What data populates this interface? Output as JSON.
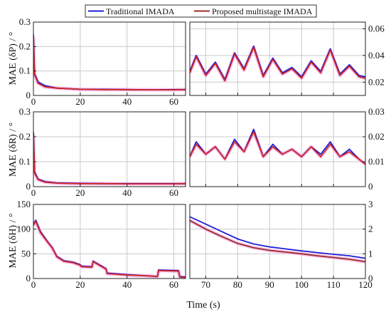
{
  "legend": {
    "entries": [
      {
        "name": "Traditional IMADA",
        "color": "#1f1fd6"
      },
      {
        "name": "Proposed multistage IMADA",
        "color": "#9b2d22"
      }
    ]
  },
  "colors": {
    "overlay": "#ff1f1f",
    "halo": "#f5a6e8"
  },
  "chart_data": [
    {
      "type": "line",
      "ylabel": "MAE (δP) / °",
      "xlabel": "Time (s)",
      "left": {
        "xlim": [
          0,
          65
        ],
        "ylim": [
          0,
          0.3
        ],
        "xticks": [
          "0",
          "20",
          "40",
          "60"
        ],
        "yticks": [
          "0",
          "0.1",
          "0.2",
          "0.3"
        ],
        "series": [
          {
            "name": "Traditional IMADA",
            "x": [
              0,
              0.5,
              2,
              5,
              10,
              20,
              30,
              40,
              50,
              60,
              65
            ],
            "y": [
              0.25,
              0.09,
              0.055,
              0.04,
              0.03,
              0.025,
              0.025,
              0.024,
              0.023,
              0.024,
              0.024
            ]
          },
          {
            "name": "Proposed multistage IMADA",
            "x": [
              0,
              0.5,
              2,
              5,
              10,
              20,
              30,
              40,
              50,
              60,
              65
            ],
            "y": [
              0.24,
              0.085,
              0.05,
              0.035,
              0.03,
              0.025,
              0.024,
              0.024,
              0.023,
              0.023,
              0.024
            ]
          }
        ]
      },
      "right": {
        "xlim": [
          65,
          120
        ],
        "ylim": [
          0.01,
          0.065
        ],
        "xticks": [
          "70",
          "80",
          "90",
          "100",
          "110",
          "120"
        ],
        "yticks": [
          "0.02",
          "0.04",
          "0.06"
        ],
        "series": [
          {
            "name": "Traditional IMADA",
            "x": [
              65,
              67,
              70,
              73,
              76,
              79,
              82,
              85,
              88,
              91,
              94,
              97,
              100,
              103,
              106,
              109,
              112,
              115,
              118,
              120
            ],
            "y": [
              0.028,
              0.04,
              0.026,
              0.035,
              0.022,
              0.042,
              0.03,
              0.047,
              0.025,
              0.038,
              0.027,
              0.031,
              0.024,
              0.036,
              0.028,
              0.045,
              0.026,
              0.033,
              0.025,
              0.024
            ]
          },
          {
            "name": "Proposed multistage IMADA",
            "x": [
              65,
              67,
              70,
              73,
              76,
              79,
              82,
              85,
              88,
              91,
              94,
              97,
              100,
              103,
              106,
              109,
              112,
              115,
              118,
              120
            ],
            "y": [
              0.027,
              0.039,
              0.025,
              0.034,
              0.021,
              0.041,
              0.029,
              0.046,
              0.024,
              0.037,
              0.026,
              0.03,
              0.023,
              0.035,
              0.027,
              0.044,
              0.025,
              0.032,
              0.024,
              0.023
            ]
          }
        ]
      }
    },
    {
      "type": "line",
      "ylabel": "MAE (δR) / °",
      "xlabel": "Time (s)",
      "left": {
        "xlim": [
          0,
          65
        ],
        "ylim": [
          0,
          0.3
        ],
        "xticks": [
          "0",
          "20",
          "40",
          "60"
        ],
        "yticks": [
          "0",
          "0.1",
          "0.2",
          "0.3"
        ],
        "series": [
          {
            "name": "Traditional IMADA",
            "x": [
              0,
              0.5,
              2,
              5,
              10,
              20,
              30,
              40,
              50,
              60,
              65
            ],
            "y": [
              0.22,
              0.06,
              0.03,
              0.02,
              0.015,
              0.013,
              0.012,
              0.012,
              0.012,
              0.012,
              0.012
            ]
          },
          {
            "name": "Proposed multistage IMADA",
            "x": [
              0,
              0.5,
              2,
              5,
              10,
              20,
              30,
              40,
              50,
              60,
              65
            ],
            "y": [
              0.21,
              0.055,
              0.028,
              0.018,
              0.014,
              0.012,
              0.012,
              0.011,
              0.011,
              0.011,
              0.012
            ]
          }
        ]
      },
      "right": {
        "xlim": [
          65,
          120
        ],
        "ylim": [
          0,
          0.03
        ],
        "xticks": [
          "70",
          "80",
          "90",
          "100",
          "110",
          "120"
        ],
        "yticks": [
          "0",
          "0.01",
          "0.02",
          "0.03"
        ],
        "series": [
          {
            "name": "Traditional IMADA",
            "x": [
              65,
              67,
              70,
              73,
              76,
              79,
              82,
              85,
              88,
              91,
              94,
              97,
              100,
              103,
              106,
              109,
              112,
              115,
              118,
              120
            ],
            "y": [
              0.012,
              0.018,
              0.013,
              0.016,
              0.011,
              0.019,
              0.014,
              0.023,
              0.012,
              0.017,
              0.013,
              0.015,
              0.012,
              0.016,
              0.013,
              0.018,
              0.012,
              0.015,
              0.011,
              0.009
            ]
          },
          {
            "name": "Proposed multistage IMADA",
            "x": [
              65,
              67,
              70,
              73,
              76,
              79,
              82,
              85,
              88,
              91,
              94,
              97,
              100,
              103,
              106,
              109,
              112,
              115,
              118,
              120
            ],
            "y": [
              0.012,
              0.017,
              0.013,
              0.016,
              0.011,
              0.018,
              0.014,
              0.022,
              0.012,
              0.016,
              0.013,
              0.015,
              0.012,
              0.016,
              0.012,
              0.017,
              0.012,
              0.014,
              0.011,
              0.009
            ]
          }
        ]
      }
    },
    {
      "type": "line",
      "ylabel": "MAE (δH) / °",
      "xlabel": "Time (s)",
      "left": {
        "xlim": [
          0,
          65
        ],
        "ylim": [
          0,
          150
        ],
        "xticks": [
          "0",
          "20",
          "40",
          "60"
        ],
        "yticks": [
          "0",
          "50",
          "100",
          "150"
        ],
        "series": [
          {
            "name": "Traditional IMADA",
            "x": [
              0,
              1,
              3,
              6,
              8,
              10,
              13,
              17,
              20,
              20.5,
              25,
              25.5,
              31,
              31.5,
              40,
              50,
              53,
              53.5,
              62,
              62.5,
              65
            ],
            "y": [
              110,
              118,
              95,
              75,
              63,
              45,
              36,
              33,
              28,
              25,
              24,
              35,
              20,
              11,
              8,
              5,
              4,
              17,
              16,
              4,
              3
            ]
          },
          {
            "name": "Proposed multistage IMADA",
            "x": [
              0,
              1,
              3,
              6,
              8,
              10,
              13,
              17,
              20,
              20.5,
              25,
              25.5,
              31,
              31.5,
              40,
              50,
              53,
              53.5,
              62,
              62.5,
              65
            ],
            "y": [
              108,
              116,
              93,
              74,
              62,
              44,
              35,
              32,
              27,
              24,
              23,
              34,
              19,
              10,
              7,
              5,
              4,
              16,
              15,
              3,
              2
            ]
          }
        ]
      },
      "right": {
        "xlim": [
          65,
          120
        ],
        "ylim": [
          0,
          3
        ],
        "xticks": [
          "70",
          "80",
          "90",
          "100",
          "110",
          "120"
        ],
        "yticks": [
          "0",
          "1",
          "2",
          "3"
        ],
        "series": [
          {
            "name": "Traditional IMADA",
            "x": [
              65,
              70,
              75,
              80,
              85,
              90,
              95,
              100,
              105,
              110,
              115,
              120
            ],
            "y": [
              2.5,
              2.2,
              1.9,
              1.6,
              1.4,
              1.28,
              1.2,
              1.12,
              1.05,
              0.98,
              0.92,
              0.82
            ]
          },
          {
            "name": "Proposed multistage IMADA",
            "x": [
              65,
              70,
              75,
              80,
              85,
              90,
              95,
              100,
              105,
              110,
              115,
              120
            ],
            "y": [
              2.35,
              2.0,
              1.7,
              1.42,
              1.25,
              1.14,
              1.07,
              1.0,
              0.92,
              0.85,
              0.78,
              0.68
            ]
          }
        ]
      }
    }
  ]
}
